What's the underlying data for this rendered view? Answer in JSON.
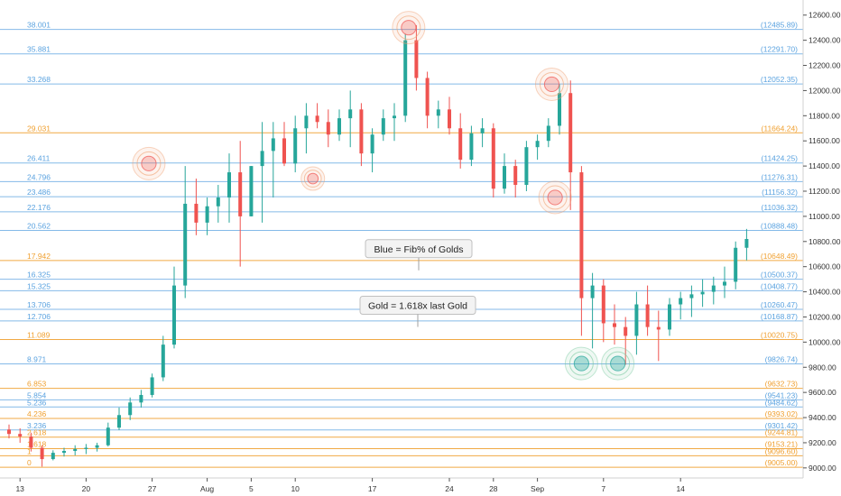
{
  "chart_data": {
    "type": "candlestick",
    "ylim": [
      8920,
      12720
    ],
    "y_ticks": [
      9000,
      9200,
      9400,
      9600,
      9800,
      10000,
      10200,
      10400,
      10600,
      10800,
      11000,
      11200,
      11400,
      11600,
      11800,
      12000,
      12200,
      12400,
      12600
    ],
    "y_tick_labels": [
      "9000.00",
      "9200.00",
      "9400.00",
      "9600.00",
      "9800.00",
      "10000.00",
      "10200.00",
      "10400.00",
      "10600.00",
      "10800.00",
      "11000.00",
      "11200.00",
      "11400.00",
      "11600.00",
      "11800.00",
      "12000.00",
      "12200.00",
      "12400.00",
      "12600.00"
    ],
    "x_range": [
      0,
      74
    ],
    "x_ticks": [
      {
        "pos": 1,
        "label": "13"
      },
      {
        "pos": 7,
        "label": "20"
      },
      {
        "pos": 13,
        "label": "27"
      },
      {
        "pos": 18,
        "label": "Aug"
      },
      {
        "pos": 22,
        "label": "5"
      },
      {
        "pos": 26,
        "label": "10"
      },
      {
        "pos": 33,
        "label": "17"
      },
      {
        "pos": 40,
        "label": "24"
      },
      {
        "pos": 44,
        "label": "28"
      },
      {
        "pos": 48,
        "label": "Sep"
      },
      {
        "pos": 54,
        "label": "7"
      },
      {
        "pos": 61,
        "label": "14"
      }
    ],
    "levels": [
      {
        "pct": "38.001",
        "price": "(12485.89)",
        "value": 12485.89,
        "kind": "blue"
      },
      {
        "pct": "35.881",
        "price": "(12291.70)",
        "value": 12291.7,
        "kind": "blue"
      },
      {
        "pct": "33.268",
        "price": "(12052.35)",
        "value": 12052.35,
        "kind": "blue"
      },
      {
        "pct": "29.031",
        "price": "(11664.24)",
        "value": 11664.24,
        "kind": "gold"
      },
      {
        "pct": "26.411",
        "price": "(11424.25)",
        "value": 11424.25,
        "kind": "blue"
      },
      {
        "pct": "24.796",
        "price": "(11276.31)",
        "value": 11276.31,
        "kind": "blue"
      },
      {
        "pct": "23.486",
        "price": "(11156.32)",
        "value": 11156.32,
        "kind": "blue"
      },
      {
        "pct": "22.176",
        "price": "(11036.32)",
        "value": 11036.32,
        "kind": "blue"
      },
      {
        "pct": "20.562",
        "price": "(10888.48)",
        "value": 10888.48,
        "kind": "blue"
      },
      {
        "pct": "17.942",
        "price": "(10648.49)",
        "value": 10648.49,
        "kind": "gold"
      },
      {
        "pct": "16.325",
        "price": "(10500.37)",
        "value": 10500.37,
        "kind": "blue"
      },
      {
        "pct": "15.325",
        "price": "(10408.77)",
        "value": 10408.77,
        "kind": "blue"
      },
      {
        "pct": "13.706",
        "price": "(10260.47)",
        "value": 10260.47,
        "kind": "blue"
      },
      {
        "pct": "12.706",
        "price": "(10168.87)",
        "value": 10168.87,
        "kind": "blue"
      },
      {
        "pct": "11.089",
        "price": "(10020.75)",
        "value": 10020.75,
        "kind": "gold"
      },
      {
        "pct": "8.971",
        "price": "(9826.74)",
        "value": 9826.74,
        "kind": "blue"
      },
      {
        "pct": "6.853",
        "price": "(9632.73)",
        "value": 9632.73,
        "kind": "gold"
      },
      {
        "pct": "5.854",
        "price": "(9541.23)",
        "value": 9541.23,
        "kind": "blue"
      },
      {
        "pct": "5.236",
        "price": "(9484.62)",
        "value": 9484.62,
        "kind": "blue"
      },
      {
        "pct": "4.236",
        "price": "(9393.02)",
        "value": 9393.02,
        "kind": "gold"
      },
      {
        "pct": "3.236",
        "price": "(9301.42)",
        "value": 9301.42,
        "kind": "blue"
      },
      {
        "pct": "2.618",
        "price": "(9244.81)",
        "value": 9244.81,
        "kind": "gold"
      },
      {
        "pct": "1.618",
        "price": "(9153.21)",
        "value": 9153.21,
        "kind": "gold"
      },
      {
        "pct": "1",
        "price": "(9096.60)",
        "value": 9096.6,
        "kind": "gold"
      },
      {
        "pct": "0",
        "price": "(9005.00)",
        "value": 9005.0,
        "kind": "gold"
      }
    ],
    "candles": [
      [
        9305,
        9345,
        9235,
        9270
      ],
      [
        9270,
        9315,
        9200,
        9250
      ],
      [
        9250,
        9280,
        9130,
        9160
      ],
      [
        9160,
        9180,
        9010,
        9070
      ],
      [
        9070,
        9140,
        9060,
        9120
      ],
      [
        9120,
        9160,
        9090,
        9135
      ],
      [
        9135,
        9180,
        9100,
        9150
      ],
      [
        9150,
        9190,
        9110,
        9160
      ],
      [
        9160,
        9200,
        9130,
        9180
      ],
      [
        9180,
        9360,
        9170,
        9320
      ],
      [
        9320,
        9480,
        9300,
        9420
      ],
      [
        9420,
        9560,
        9380,
        9520
      ],
      [
        9520,
        9620,
        9480,
        9580
      ],
      [
        9580,
        9750,
        9560,
        9720
      ],
      [
        9720,
        10050,
        9690,
        9980
      ],
      [
        9980,
        10600,
        9950,
        10450
      ],
      [
        10450,
        11400,
        10350,
        11100
      ],
      [
        11100,
        11300,
        10850,
        10950
      ],
      [
        10950,
        11150,
        10850,
        11080
      ],
      [
        11080,
        11250,
        10950,
        11150
      ],
      [
        11150,
        11500,
        10950,
        11350
      ],
      [
        11350,
        11600,
        10600,
        11000
      ],
      [
        11000,
        11400,
        11000,
        11400
      ],
      [
        11400,
        11750,
        10950,
        11520
      ],
      [
        11520,
        11750,
        11150,
        11620
      ],
      [
        11620,
        11750,
        11400,
        11420
      ],
      [
        11420,
        11800,
        11350,
        11700
      ],
      [
        11700,
        11900,
        11500,
        11800
      ],
      [
        11800,
        11900,
        11700,
        11750
      ],
      [
        11750,
        11850,
        11550,
        11650
      ],
      [
        11650,
        11850,
        11600,
        11780
      ],
      [
        11780,
        12000,
        11550,
        11850
      ],
      [
        11850,
        11900,
        11400,
        11500
      ],
      [
        11500,
        11700,
        11350,
        11650
      ],
      [
        11650,
        11850,
        11600,
        11780
      ],
      [
        11780,
        11900,
        11600,
        11800
      ],
      [
        11800,
        12450,
        11750,
        12400
      ],
      [
        12400,
        12520,
        12000,
        12100
      ],
      [
        12100,
        12150,
        11700,
        11800
      ],
      [
        11800,
        11920,
        11700,
        11850
      ],
      [
        11850,
        11950,
        11650,
        11700
      ],
      [
        11700,
        11820,
        11380,
        11450
      ],
      [
        11450,
        11720,
        11400,
        11660
      ],
      [
        11660,
        11780,
        11550,
        11700
      ],
      [
        11700,
        11740,
        11150,
        11220
      ],
      [
        11220,
        11500,
        11180,
        11400
      ],
      [
        11400,
        11450,
        11150,
        11250
      ],
      [
        11250,
        11600,
        11200,
        11550
      ],
      [
        11550,
        11650,
        11450,
        11600
      ],
      [
        11600,
        11780,
        11550,
        11720
      ],
      [
        11720,
        12050,
        11650,
        11980
      ],
      [
        11980,
        12080,
        11050,
        11350
      ],
      [
        11350,
        11400,
        10050,
        10350
      ],
      [
        10350,
        10550,
        9950,
        10450
      ],
      [
        10450,
        10500,
        10000,
        10150
      ],
      [
        10150,
        10300,
        9980,
        10120
      ],
      [
        10120,
        10200,
        9820,
        10050
      ],
      [
        10050,
        10400,
        9900,
        10300
      ],
      [
        10300,
        10450,
        10050,
        10120
      ],
      [
        10120,
        10250,
        9850,
        10100
      ],
      [
        10100,
        10350,
        10050,
        10300
      ],
      [
        10300,
        10400,
        10180,
        10350
      ],
      [
        10350,
        10450,
        10200,
        10380
      ],
      [
        10380,
        10500,
        10280,
        10400
      ],
      [
        10400,
        10520,
        10300,
        10450
      ],
      [
        10450,
        10600,
        10350,
        10480
      ],
      [
        10480,
        10800,
        10420,
        10750
      ],
      [
        10750,
        10900,
        10650,
        10820
      ]
    ],
    "callouts": [
      {
        "label": "Blue = Fib% of Golds",
        "price": 10750
      },
      {
        "label": "Gold = 1.618x last Gold",
        "price": 10300
      }
    ],
    "markers": [
      {
        "x": 12.7,
        "price": 11420,
        "color": "red",
        "size": "large"
      },
      {
        "x": 27.6,
        "price": 11300,
        "color": "red",
        "size": "small"
      },
      {
        "x": 36.3,
        "price": 12500,
        "color": "red",
        "size": "large"
      },
      {
        "x": 49.3,
        "price": 12050,
        "color": "red",
        "size": "large"
      },
      {
        "x": 49.6,
        "price": 11150,
        "color": "red",
        "size": "large"
      },
      {
        "x": 52.0,
        "price": 9830,
        "color": "green",
        "size": "large"
      },
      {
        "x": 55.3,
        "price": 9830,
        "color": "green",
        "size": "large"
      }
    ],
    "colors": {
      "blue": "#5ba3e0",
      "gold": "#f0a030",
      "up": "#26a69a",
      "down": "#ef5350"
    }
  }
}
